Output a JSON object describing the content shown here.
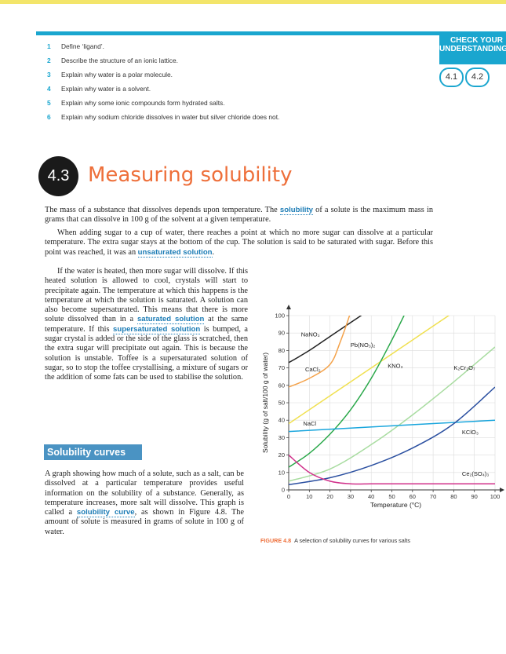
{
  "check": {
    "title_line1": "CHECK YOUR",
    "title_line2": "UNDERSTANDING",
    "links": [
      "4.1",
      "4.2"
    ]
  },
  "questions": [
    {
      "num": "1",
      "text": "Define ‘ligand’."
    },
    {
      "num": "2",
      "text": "Describe the structure of an ionic lattice."
    },
    {
      "num": "3",
      "text": "Explain why water is a polar molecule."
    },
    {
      "num": "4",
      "text": "Explain why water is a solvent."
    },
    {
      "num": "5",
      "text": "Explain why some ionic compounds form hydrated salts."
    },
    {
      "num": "6",
      "text": "Explain why sodium chloride dissolves in water but silver chloride does not."
    }
  ],
  "section": {
    "number": "4.3",
    "title": "Measuring solubility"
  },
  "para1": {
    "a": "The mass of a substance that dissolves depends upon temperature. The ",
    "k1": "solubility",
    "b": " of a solute is the maximum mass in grams that can dissolve in 100 g of the solvent at a given temperature."
  },
  "para2": {
    "a": "When adding sugar to a cup of water, there reaches a point at which no more sugar can dissolve at a particular temperature. The extra sugar stays at the bottom of the cup. The solution is said to be saturated with sugar. Before this point was reached, it was an ",
    "k1": "unsaturated solution",
    "b": "."
  },
  "para3": {
    "a": "If the water is heated, then more sugar will dissolve. If this heated solution is allowed to cool, crystals will start to precipitate again. The temperature at which this happens is the temperature at which the solution is saturated. A solution can also become supersaturated. This means that there is more solute dissolved than in a ",
    "k1": "saturated solution",
    "b": " at the same temperature. If this ",
    "k2": "supersaturated solution",
    "c": " is bumped, a sugar crystal is added or the side of the glass is scratched, then the extra sugar will precipitate out again. This is because the solution is unstable. Toffee is a supersaturated solution of sugar, so to stop the toffee crystallising, a mixture of sugars or the addition of some fats can be used to stabilise the solution."
  },
  "subhead": "Solubility curves",
  "para4": {
    "a": "A graph showing how much of a solute, such as a salt, can be dissolved at a particular temperature provides useful information on the solubility of a substance. Generally, as temperature increases, more salt will dissolve. This graph is called a ",
    "k1": "solubility curve",
    "b": ", as shown in Figure 4.8. The amount of solute is measured in grams of solute in 100 g of water."
  },
  "caption": {
    "label": "FIGURE 4.8",
    "text": "A selection of solubility curves for various salts"
  },
  "chart_data": {
    "type": "line",
    "xlabel": "Temperature (°C)",
    "ylabel": "Solubility (g of salt/100 g of water)",
    "xlim": [
      0,
      100
    ],
    "ylim": [
      0,
      100
    ],
    "xticks": [
      0,
      10,
      20,
      30,
      40,
      50,
      60,
      70,
      80,
      90,
      100
    ],
    "yticks": [
      0,
      10,
      20,
      30,
      40,
      50,
      60,
      70,
      80,
      90,
      100
    ],
    "grid": true,
    "series": [
      {
        "name": "NaNO₃",
        "color": "#222222",
        "label_at": [
          6,
          88
        ],
        "x": [
          0,
          10,
          20,
          30,
          40
        ],
        "y": [
          73,
          80,
          88,
          96,
          104
        ]
      },
      {
        "name": "CaCl₂",
        "color": "#f4a24a",
        "label_at": [
          8,
          68
        ],
        "x": [
          0,
          10,
          20,
          25,
          30,
          33
        ],
        "y": [
          59,
          64,
          72,
          85,
          102,
          115
        ]
      },
      {
        "name": "Pb(NO₃)₂",
        "color": "#f0e050",
        "label_at": [
          30,
          82
        ],
        "x": [
          0,
          20,
          40,
          60,
          80,
          100
        ],
        "y": [
          38,
          54,
          70,
          86,
          102,
          118
        ]
      },
      {
        "name": "KNO₃",
        "color": "#2aa84a",
        "label_at": [
          48,
          70
        ],
        "x": [
          0,
          10,
          20,
          30,
          40,
          50,
          60
        ],
        "y": [
          13,
          21,
          32,
          46,
          64,
          86,
          110
        ]
      },
      {
        "name": "K₂Cr₂O₇",
        "color": "#a8dca0",
        "label_at": [
          80,
          69
        ],
        "x": [
          0,
          20,
          40,
          60,
          80,
          100
        ],
        "y": [
          5,
          12,
          26,
          43,
          62,
          82
        ]
      },
      {
        "name": "NaCl",
        "color": "#1aa6dd",
        "label_at": [
          7,
          37
        ],
        "x": [
          0,
          100
        ],
        "y": [
          33.5,
          40
        ]
      },
      {
        "name": "KClO₃",
        "color": "#2a4fa0",
        "label_at": [
          84,
          32
        ],
        "x": [
          0,
          20,
          40,
          60,
          80,
          100
        ],
        "y": [
          3,
          7,
          14,
          24,
          38,
          59
        ]
      },
      {
        "name": "Ce₂(SO₄)₃",
        "color": "#d0308a",
        "label_at": [
          84,
          8
        ],
        "x": [
          0,
          10,
          20,
          30,
          40,
          50,
          100
        ],
        "y": [
          20,
          10,
          5,
          3.5,
          3.5,
          3.5,
          3.5
        ]
      }
    ]
  }
}
